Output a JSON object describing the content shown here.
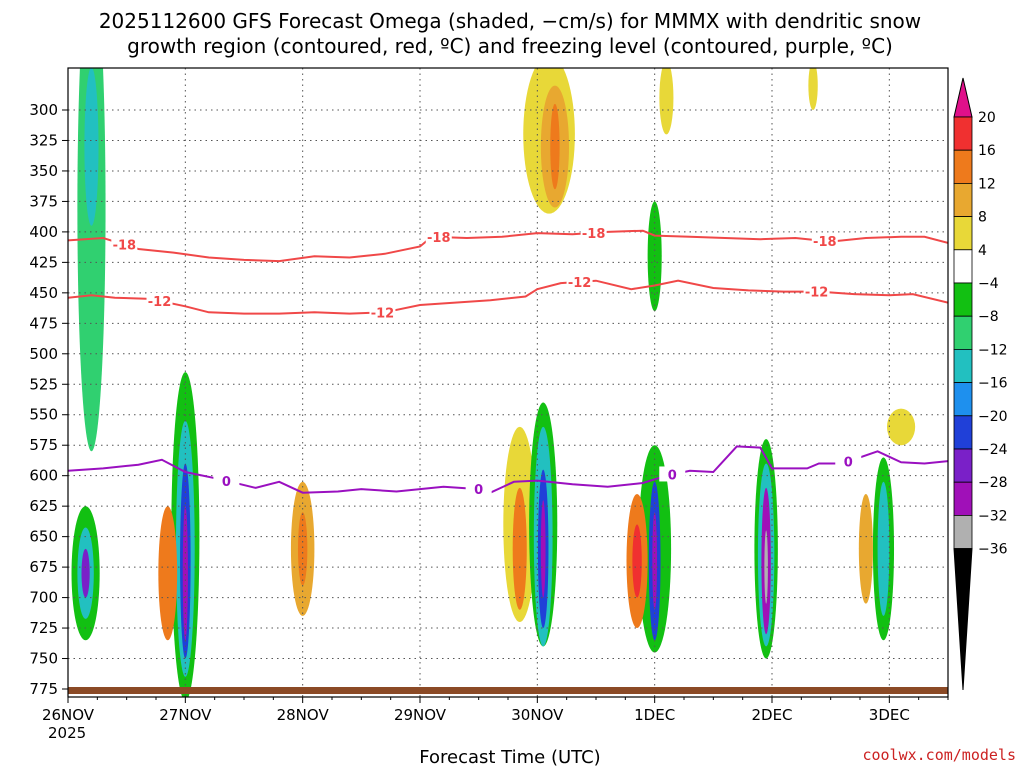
{
  "chart_data": {
    "type": "heatmap",
    "title_line1": "2025112600 GFS Forecast Omega (shaded, −cm/s) for MMMX with dendritic snow",
    "title_line2": "growth region (contoured, red, ºC) and freezing level (contoured, purple, ºC)",
    "xlabel": "Forecast Time (UTC)",
    "credit": "coolwx.com/models",
    "x_ticks": [
      "26NOV",
      "27NOV",
      "28NOV",
      "29NOV",
      "30NOV",
      "1DEC",
      "2DEC",
      "3DEC"
    ],
    "x_year": "2025",
    "y_ticks": [
      "300",
      "325",
      "350",
      "375",
      "400",
      "425",
      "450",
      "475",
      "500",
      "525",
      "550",
      "575",
      "600",
      "625",
      "650",
      "675",
      "700",
      "725",
      "750",
      "775"
    ],
    "ylim": [
      775,
      272
    ],
    "xlim_days": [
      0,
      7.5
    ],
    "colorbar": {
      "labels": [
        "20",
        "16",
        "12",
        "8",
        "4",
        "−4",
        "−8",
        "−12",
        "−16",
        "−20",
        "−24",
        "−28",
        "−32",
        "−36"
      ],
      "colors": [
        "#f03030",
        "#ee7a1c",
        "#e8a830",
        "#e8d838",
        "#ffffff",
        "#12c012",
        "#30d070",
        "#22c0c0",
        "#1e90ee",
        "#2040d8",
        "#7a20c8",
        "#a010b8",
        "#b0b0b0"
      ],
      "top_color": "#e0108a",
      "bottom_color": "#000000"
    },
    "contours": [
      {
        "name": "dgz-minus18",
        "label": "-18",
        "color": "#f04848",
        "points": [
          [
            0,
            407
          ],
          [
            0.3,
            405
          ],
          [
            0.6,
            414
          ],
          [
            0.9,
            417
          ],
          [
            1.2,
            421
          ],
          [
            1.5,
            423
          ],
          [
            1.8,
            424
          ],
          [
            2.1,
            420
          ],
          [
            2.4,
            421
          ],
          [
            2.7,
            418
          ],
          [
            3.0,
            412
          ],
          [
            3.1,
            404
          ],
          [
            3.4,
            405
          ],
          [
            3.7,
            404
          ],
          [
            4.0,
            401
          ],
          [
            4.3,
            402
          ],
          [
            4.6,
            400
          ],
          [
            4.9,
            399
          ],
          [
            5.0,
            403
          ],
          [
            5.3,
            404
          ],
          [
            5.6,
            405
          ],
          [
            5.9,
            406
          ],
          [
            6.2,
            405
          ],
          [
            6.5,
            408
          ],
          [
            6.8,
            405
          ],
          [
            7.1,
            404
          ],
          [
            7.3,
            404
          ],
          [
            7.5,
            409
          ]
        ],
        "label_at": [
          0.48,
          3.16,
          4.48,
          6.45
        ]
      },
      {
        "name": "dgz-minus12",
        "label": "-12",
        "color": "#f04848",
        "points": [
          [
            0,
            454
          ],
          [
            0.2,
            452
          ],
          [
            0.4,
            454
          ],
          [
            0.7,
            455
          ],
          [
            1.0,
            461
          ],
          [
            1.2,
            466
          ],
          [
            1.5,
            467
          ],
          [
            1.8,
            467
          ],
          [
            2.1,
            466
          ],
          [
            2.4,
            467
          ],
          [
            2.7,
            466
          ],
          [
            3.0,
            460
          ],
          [
            3.3,
            458
          ],
          [
            3.6,
            456
          ],
          [
            3.9,
            453
          ],
          [
            4.0,
            447
          ],
          [
            4.2,
            442
          ],
          [
            4.5,
            440
          ],
          [
            4.8,
            447
          ],
          [
            5.0,
            444
          ],
          [
            5.2,
            440
          ],
          [
            5.5,
            446
          ],
          [
            5.8,
            448
          ],
          [
            6.1,
            449
          ],
          [
            6.4,
            449
          ],
          [
            6.7,
            451
          ],
          [
            7.0,
            452
          ],
          [
            7.2,
            451
          ],
          [
            7.5,
            458
          ]
        ],
        "label_at": [
          0.78,
          2.68,
          4.36,
          6.38
        ]
      },
      {
        "name": "freezing-level",
        "label": "0",
        "color": "#9a10c0",
        "points": [
          [
            0,
            596
          ],
          [
            0.3,
            594
          ],
          [
            0.6,
            591
          ],
          [
            0.8,
            587
          ],
          [
            1.0,
            597
          ],
          [
            1.3,
            603
          ],
          [
            1.6,
            610
          ],
          [
            1.8,
            605
          ],
          [
            2.0,
            614
          ],
          [
            2.3,
            613
          ],
          [
            2.5,
            611
          ],
          [
            2.8,
            613
          ],
          [
            3.0,
            611
          ],
          [
            3.2,
            609
          ],
          [
            3.5,
            611
          ],
          [
            3.6,
            614
          ],
          [
            3.8,
            605
          ],
          [
            4.0,
            604
          ],
          [
            4.3,
            607
          ],
          [
            4.6,
            609
          ],
          [
            4.9,
            606
          ],
          [
            5.1,
            600
          ],
          [
            5.3,
            596
          ],
          [
            5.5,
            597
          ],
          [
            5.7,
            576
          ],
          [
            5.9,
            577
          ],
          [
            6.0,
            594
          ],
          [
            6.3,
            594
          ],
          [
            6.4,
            590
          ],
          [
            6.6,
            590
          ],
          [
            6.9,
            580
          ],
          [
            7.1,
            589
          ],
          [
            7.3,
            590
          ],
          [
            7.5,
            588
          ]
        ],
        "label_at": [
          1.35,
          3.5,
          5.15,
          6.65
        ]
      }
    ],
    "omega_blobs": [
      {
        "t": 0.15,
        "p": 680,
        "w": 0.12,
        "h": 110,
        "color": "#12c012"
      },
      {
        "t": 0.15,
        "p": 680,
        "w": 0.07,
        "h": 75,
        "color": "#22c0c0"
      },
      {
        "t": 0.15,
        "p": 680,
        "w": 0.035,
        "h": 40,
        "color": "#7a20c8"
      },
      {
        "t": 0.2,
        "p": 380,
        "w": 0.12,
        "h": 400,
        "color": "#30d070"
      },
      {
        "t": 0.2,
        "p": 330,
        "w": 0.06,
        "h": 130,
        "color": "#22c0c0"
      },
      {
        "t": 1.0,
        "p": 650,
        "w": 0.12,
        "h": 270,
        "color": "#12c012"
      },
      {
        "t": 1.0,
        "p": 660,
        "w": 0.08,
        "h": 210,
        "color": "#22c0c0"
      },
      {
        "t": 1.0,
        "p": 670,
        "w": 0.045,
        "h": 160,
        "color": "#2040d8"
      },
      {
        "t": 1.0,
        "p": 680,
        "w": 0.022,
        "h": 110,
        "color": "#a010b8"
      },
      {
        "t": 0.85,
        "p": 680,
        "w": 0.08,
        "h": 110,
        "color": "#ee7a1c"
      },
      {
        "t": 2.0,
        "p": 660,
        "w": 0.1,
        "h": 110,
        "color": "#e8a830"
      },
      {
        "t": 2.0,
        "p": 660,
        "w": 0.04,
        "h": 60,
        "color": "#ee7a1c"
      },
      {
        "t": 3.85,
        "p": 640,
        "w": 0.14,
        "h": 160,
        "color": "#e8d838"
      },
      {
        "t": 4.05,
        "p": 640,
        "w": 0.12,
        "h": 200,
        "color": "#12c012"
      },
      {
        "t": 4.05,
        "p": 650,
        "w": 0.08,
        "h": 180,
        "color": "#22c0c0"
      },
      {
        "t": 4.05,
        "p": 660,
        "w": 0.045,
        "h": 130,
        "color": "#2040d8"
      },
      {
        "t": 4.05,
        "p": 660,
        "w": 0.02,
        "h": 80,
        "color": "#a010b8"
      },
      {
        "t": 3.85,
        "p": 660,
        "w": 0.06,
        "h": 100,
        "color": "#ee7a1c"
      },
      {
        "t": 4.1,
        "p": 320,
        "w": 0.22,
        "h": 130,
        "color": "#e8d838"
      },
      {
        "t": 4.15,
        "p": 330,
        "w": 0.12,
        "h": 100,
        "color": "#e8a830"
      },
      {
        "t": 4.15,
        "p": 330,
        "w": 0.04,
        "h": 70,
        "color": "#ee7a1c"
      },
      {
        "t": 5.0,
        "p": 660,
        "w": 0.14,
        "h": 170,
        "color": "#12c012"
      },
      {
        "t": 4.85,
        "p": 670,
        "w": 0.09,
        "h": 110,
        "color": "#ee7a1c"
      },
      {
        "t": 4.85,
        "p": 670,
        "w": 0.04,
        "h": 60,
        "color": "#f03030"
      },
      {
        "t": 5.0,
        "p": 670,
        "w": 0.05,
        "h": 130,
        "color": "#2040d8"
      },
      {
        "t": 5.0,
        "p": 670,
        "w": 0.02,
        "h": 80,
        "color": "#a010b8"
      },
      {
        "t": 5.0,
        "p": 420,
        "w": 0.06,
        "h": 90,
        "color": "#12c012"
      },
      {
        "t": 5.95,
        "p": 660,
        "w": 0.1,
        "h": 180,
        "color": "#12c012"
      },
      {
        "t": 5.95,
        "p": 665,
        "w": 0.07,
        "h": 150,
        "color": "#22c0c0"
      },
      {
        "t": 5.95,
        "p": 670,
        "w": 0.04,
        "h": 120,
        "color": "#a010b8"
      },
      {
        "t": 5.95,
        "p": 675,
        "w": 0.015,
        "h": 60,
        "color": "#b0b0b0"
      },
      {
        "t": 6.95,
        "p": 660,
        "w": 0.09,
        "h": 150,
        "color": "#12c012"
      },
      {
        "t": 6.95,
        "p": 660,
        "w": 0.05,
        "h": 110,
        "color": "#22c0c0"
      },
      {
        "t": 6.8,
        "p": 660,
        "w": 0.06,
        "h": 90,
        "color": "#e8a830"
      },
      {
        "t": 6.35,
        "p": 280,
        "w": 0.04,
        "h": 40,
        "color": "#e8d838"
      },
      {
        "t": 5.1,
        "p": 290,
        "w": 0.06,
        "h": 60,
        "color": "#e8d838"
      },
      {
        "t": 7.1,
        "p": 560,
        "w": 0.12,
        "h": 30,
        "color": "#e8d838"
      }
    ]
  }
}
